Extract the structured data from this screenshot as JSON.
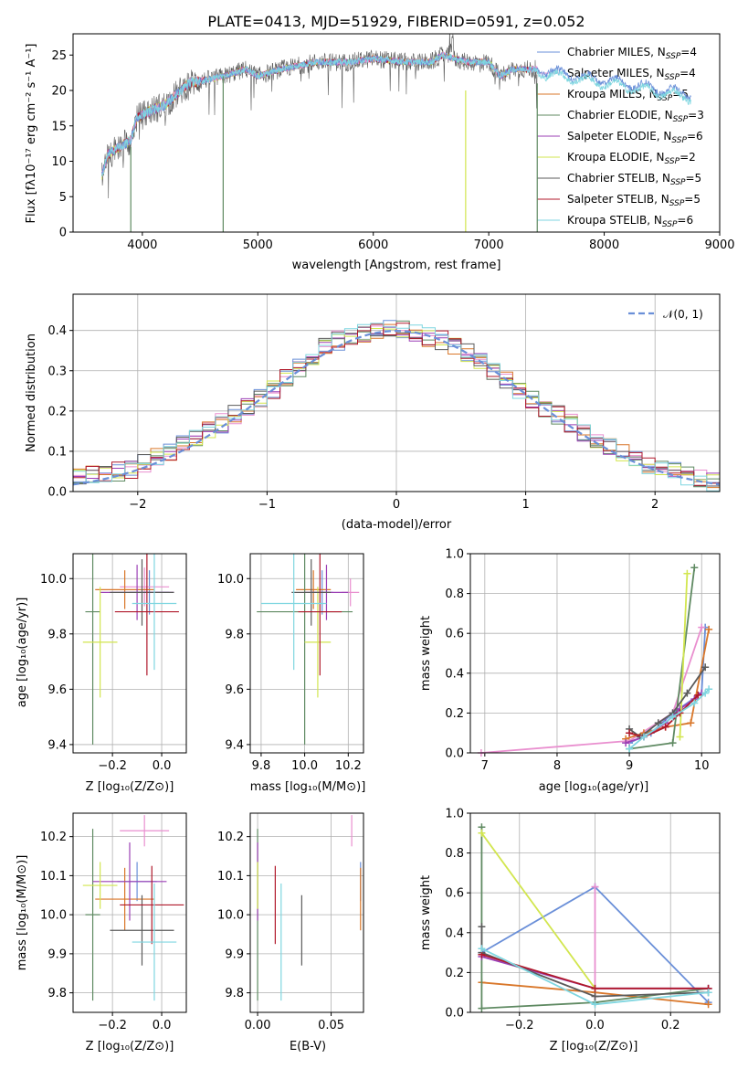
{
  "colors": [
    "#6a8fd8",
    "#e98fcf",
    "#d9772a",
    "#5f8a62",
    "#9b3fb5",
    "#d2e64f",
    "#5b5b5b",
    "#b0192b",
    "#7fd6e0"
  ],
  "spectrum": {
    "title": "PLATE=0413, MJD=51929, FIBERID=0591, z=0.052",
    "xlabel": "wavelength [Angstrom, rest frame]",
    "ylabel": "Flux [fλ10⁻¹⁷ erg cm⁻² s⁻¹ A⁻¹]",
    "xticks": [
      "4000",
      "5000",
      "6000",
      "7000",
      "8000",
      "9000"
    ],
    "yticks": [
      "0",
      "5",
      "10",
      "15",
      "20",
      "25"
    ],
    "legend": [
      "Chabrier MILES, N_SSP=4",
      "Salpeter MILES, N_SSP=4",
      "Kroupa MILES, N_SSP=5",
      "Chabrier ELODIE, N_SSP=3",
      "Salpeter ELODIE, N_SSP=6",
      "Kroupa ELODIE, N_SSP=2",
      "Chabrier STELIB, N_SSP=5",
      "Salpeter STELIB, N_SSP=5",
      "Kroupa STELIB, N_SSP=6"
    ]
  },
  "histogram": {
    "xlabel": "(data-model)/error",
    "ylabel": "Normed distribution",
    "xticks": [
      "−2",
      "−1",
      "0",
      "1",
      "2"
    ],
    "yticks": [
      "0.0",
      "0.1",
      "0.2",
      "0.3",
      "0.4"
    ],
    "legend": "𝒩(0, 1)"
  },
  "panels": {
    "p1": {
      "xlabel": "Z [log₁₀(Z/Z⊙)]",
      "ylabel": "age  [log₁₀(age/yr)]",
      "xticks": [
        "−0.2",
        "0.0"
      ],
      "yticks": [
        "9.4",
        "9.6",
        "9.8",
        "10.0"
      ]
    },
    "p2": {
      "xlabel": "mass [log₁₀(M/M⊙)]",
      "xticks": [
        "9.8",
        "10.0",
        "10.2"
      ],
      "yticks": [
        "9.4",
        "9.6",
        "9.8",
        "10.0"
      ]
    },
    "p3": {
      "xlabel": "age  [log₁₀(age/yr)]",
      "ylabel": "mass weight",
      "xticks": [
        "7",
        "8",
        "9",
        "10"
      ],
      "yticks": [
        "0.0",
        "0.2",
        "0.4",
        "0.6",
        "0.8",
        "1.0"
      ]
    },
    "p4": {
      "xlabel": "Z [log₁₀(Z/Z⊙)]",
      "ylabel": "mass [log₁₀(M/M⊙)]",
      "xticks": [
        "−0.2",
        "0.0"
      ],
      "yticks": [
        "9.8",
        "9.9",
        "10.0",
        "10.1",
        "10.2"
      ]
    },
    "p5": {
      "xlabel": "E(B-V)",
      "xticks": [
        "0.00",
        "0.05"
      ],
      "yticks": [
        "9.8",
        "9.9",
        "10.0",
        "10.1",
        "10.2"
      ]
    },
    "p6": {
      "xlabel": "Z [log₁₀(Z/Z⊙)]",
      "ylabel": "mass weight",
      "xticks": [
        "−0.2",
        "0.0",
        "0.2"
      ],
      "yticks": [
        "0.0",
        "0.2",
        "0.4",
        "0.6",
        "0.8",
        "1.0"
      ]
    }
  },
  "chart_data": [
    {
      "type": "line",
      "title": "PLATE=0413, MJD=51929, FIBERID=0591, z=0.052",
      "xlim": [
        3400,
        9000
      ],
      "ylim": [
        0,
        28
      ],
      "approx_continuum": {
        "x": [
          3650,
          3700,
          3800,
          3900,
          3950,
          4050,
          4200,
          4400,
          4700,
          4900,
          5000,
          5200,
          5500,
          5800,
          6000,
          6300,
          6500,
          6600,
          6800,
          7000,
          7100,
          7200,
          7300,
          7400
        ],
        "y": [
          8,
          11,
          12,
          13,
          16,
          17,
          18,
          21,
          22,
          23,
          22,
          23,
          24,
          24,
          24.5,
          24,
          24,
          25,
          24,
          24,
          22,
          23,
          23,
          23
        ]
      }
    },
    {
      "type": "bar",
      "xlim": [
        -2.5,
        2.5
      ],
      "ylim": [
        0,
        0.49
      ],
      "model_curve": {
        "name": "𝒩(0, 1)",
        "mean": 0,
        "sigma": 1
      },
      "bin_width": 0.1,
      "approx_density": {
        "x": [
          -2.5,
          -2.0,
          -1.5,
          -1.0,
          -0.5,
          0.0,
          0.5,
          1.0,
          1.5,
          2.0,
          2.5
        ],
        "y": [
          0.03,
          0.06,
          0.14,
          0.24,
          0.37,
          0.41,
          0.36,
          0.24,
          0.14,
          0.06,
          0.02
        ]
      }
    },
    {
      "type": "scatter",
      "xlabel": "Z [log₁₀(Z/Z⊙)]",
      "ylabel": "age  [log₁₀(age/yr)]",
      "xlim": [
        -0.36,
        0.1
      ],
      "ylim": [
        9.37,
        10.09
      ],
      "x": [
        -0.05,
        -0.07,
        -0.15,
        -0.28,
        -0.1,
        -0.25,
        -0.08,
        -0.06,
        -0.03
      ],
      "y": [
        9.95,
        9.97,
        9.96,
        9.88,
        9.95,
        9.77,
        9.95,
        9.88,
        9.91
      ],
      "xerr": [
        0.08,
        0.1,
        0.12,
        0.03,
        0.15,
        0.07,
        0.13,
        0.13,
        0.09
      ],
      "yerr": [
        0.08,
        0.07,
        0.07,
        0.48,
        0.1,
        0.2,
        0.12,
        0.23,
        0.24
      ]
    },
    {
      "type": "scatter",
      "xlabel": "mass [log₁₀(M/M⊙)]",
      "xlim": [
        9.75,
        10.27
      ],
      "ylim": [
        9.37,
        10.09
      ],
      "x": [
        10.08,
        10.21,
        10.04,
        10.0,
        10.1,
        10.06,
        10.03,
        10.07,
        9.95
      ],
      "y": [
        9.95,
        9.95,
        9.96,
        9.88,
        9.95,
        9.77,
        9.95,
        9.88,
        9.91
      ],
      "xerr": [
        0.05,
        0.04,
        0.08,
        0.22,
        0.1,
        0.06,
        0.09,
        0.1,
        0.15
      ],
      "yerr": [
        0.08,
        0.05,
        0.07,
        0.48,
        0.1,
        0.2,
        0.12,
        0.23,
        0.24
      ]
    },
    {
      "type": "line",
      "xlabel": "age  [log₁₀(age/yr)]",
      "ylabel": "mass weight",
      "xlim": [
        6.8,
        10.25
      ],
      "ylim": [
        0,
        1
      ],
      "series": [
        {
          "x": [
            9.0,
            9.3,
            9.6,
            10.0,
            10.05
          ],
          "y": [
            0.05,
            0.1,
            0.2,
            0.3,
            0.63
          ]
        },
        {
          "x": [
            6.95,
            9.0,
            9.6,
            10.0
          ],
          "y": [
            0.0,
            0.06,
            0.2,
            0.63
          ]
        },
        {
          "x": [
            8.95,
            9.2,
            9.5,
            9.85,
            10.1
          ],
          "y": [
            0.07,
            0.1,
            0.13,
            0.15,
            0.62
          ]
        },
        {
          "x": [
            9.0,
            9.6,
            9.9
          ],
          "y": [
            0.02,
            0.05,
            0.93
          ]
        },
        {
          "x": [
            8.95,
            9.2,
            9.5,
            9.7,
            9.9,
            10.0
          ],
          "y": [
            0.05,
            0.08,
            0.15,
            0.22,
            0.27,
            0.3
          ]
        },
        {
          "x": [
            9.7,
            9.8
          ],
          "y": [
            0.08,
            0.9
          ]
        },
        {
          "x": [
            9.0,
            9.15,
            9.4,
            9.6,
            9.8,
            10.05
          ],
          "y": [
            0.12,
            0.08,
            0.15,
            0.2,
            0.3,
            0.43
          ]
        },
        {
          "x": [
            9.0,
            9.2,
            9.5,
            9.7,
            9.95
          ],
          "y": [
            0.1,
            0.08,
            0.13,
            0.2,
            0.29
          ]
        },
        {
          "x": [
            9.0,
            9.2,
            9.6,
            9.9,
            10.05,
            10.1
          ],
          "y": [
            0.02,
            0.08,
            0.18,
            0.25,
            0.3,
            0.32
          ]
        }
      ]
    },
    {
      "type": "scatter",
      "xlabel": "Z [log₁₀(Z/Z⊙)]",
      "ylabel": "mass [log₁₀(M/M⊙)]",
      "xlim": [
        -0.36,
        0.1
      ],
      "ylim": [
        9.75,
        10.26
      ],
      "x": [
        -0.1,
        -0.07,
        -0.15,
        -0.28,
        -0.13,
        -0.25,
        -0.08,
        -0.04,
        -0.03
      ],
      "y": [
        10.085,
        10.215,
        10.04,
        10.0,
        10.085,
        10.075,
        9.96,
        10.025,
        9.93
      ],
      "xerr": [
        0.08,
        0.1,
        0.12,
        0.03,
        0.15,
        0.07,
        0.13,
        0.13,
        0.09
      ],
      "yerr": [
        0.05,
        0.04,
        0.08,
        0.22,
        0.1,
        0.06,
        0.09,
        0.1,
        0.15
      ]
    },
    {
      "type": "scatter",
      "xlabel": "E(B-V)",
      "xlim": [
        -0.005,
        0.072
      ],
      "ylim": [
        9.75,
        10.26
      ],
      "x": [
        0.07,
        0.064,
        0.07,
        0.0,
        0.0,
        0.0,
        0.03,
        0.012,
        0.016
      ],
      "y": [
        10.085,
        10.215,
        10.04,
        10.0,
        10.085,
        10.075,
        9.96,
        10.025,
        9.93
      ],
      "yerr": [
        0.05,
        0.04,
        0.08,
        0.22,
        0.1,
        0.06,
        0.09,
        0.1,
        0.15
      ]
    },
    {
      "type": "line",
      "xlabel": "Z [log₁₀(Z/Z⊙)]",
      "ylabel": "mass weight",
      "xlim": [
        -0.33,
        0.33
      ],
      "ylim": [
        0,
        1
      ],
      "series": [
        {
          "x": [
            -0.3,
            0.0,
            0.3
          ],
          "y": [
            0.3,
            0.63,
            0.05
          ]
        },
        {
          "x": [
            0.0,
            0.0
          ],
          "y": [
            0.05,
            0.63
          ]
        },
        {
          "x": [
            -0.3,
            0.0,
            0.3
          ],
          "y": [
            0.15,
            0.1,
            0.04
          ]
        },
        {
          "x": [
            -0.3,
            -0.3,
            0.0,
            0.3
          ],
          "y": [
            0.93,
            0.02,
            0.05,
            0.12
          ]
        },
        {
          "x": [
            -0.3,
            0.0,
            0.3
          ],
          "y": [
            0.28,
            0.12,
            0.12
          ]
        },
        {
          "x": [
            -0.3,
            0.0
          ],
          "y": [
            0.9,
            0.12
          ]
        },
        {
          "x": [
            -0.3,
            -0.3,
            0.0,
            0.3
          ],
          "y": [
            0.43,
            0.3,
            0.08,
            0.1
          ]
        },
        {
          "x": [
            -0.3,
            0.0,
            0.3
          ],
          "y": [
            0.29,
            0.12,
            0.12
          ]
        },
        {
          "x": [
            -0.3,
            0.0,
            0.3
          ],
          "y": [
            0.32,
            0.04,
            0.1
          ]
        }
      ]
    }
  ]
}
